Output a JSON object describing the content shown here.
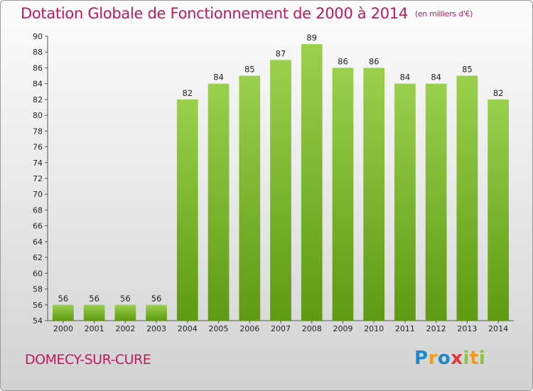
{
  "header": {
    "title": "Dotation Globale de Fonctionnement de 2000 à 2014",
    "unit": "(en milliers d'€)"
  },
  "footer": {
    "city": "DOMECY-SUR-CURE",
    "logo": "Proxiti"
  },
  "colors": {
    "title": "#c2185b",
    "bar_top": "#9ad04c",
    "bar_bottom": "#5e9a12"
  },
  "chart_data": {
    "type": "bar",
    "title": "Dotation Globale de Fonctionnement de 2000 à 2014",
    "subtitle": "(en milliers d'€)",
    "xlabel": "",
    "ylabel": "",
    "categories": [
      "2000",
      "2001",
      "2002",
      "2003",
      "2004",
      "2005",
      "2006",
      "2007",
      "2008",
      "2009",
      "2010",
      "2011",
      "2012",
      "2013",
      "2014"
    ],
    "values": [
      56,
      56,
      56,
      56,
      82,
      84,
      85,
      87,
      89,
      86,
      86,
      84,
      84,
      85,
      82
    ],
    "ylim": [
      54,
      90
    ],
    "yticks": [
      54,
      56,
      58,
      60,
      62,
      64,
      66,
      68,
      70,
      72,
      74,
      76,
      78,
      80,
      82,
      84,
      86,
      88,
      90
    ],
    "grid": false,
    "data_labels": true
  }
}
